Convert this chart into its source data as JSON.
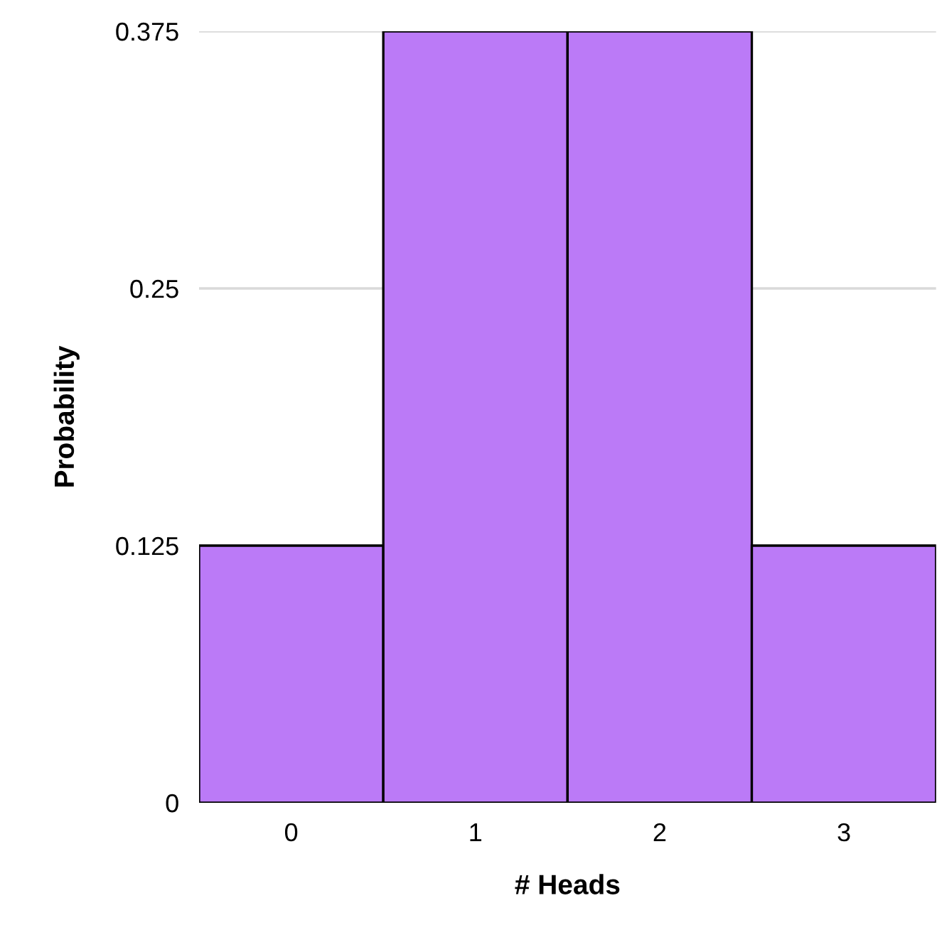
{
  "chart_data": {
    "type": "bar",
    "xlabel": "# Heads",
    "ylabel": "Probability",
    "categories": [
      "0",
      "1",
      "2",
      "3"
    ],
    "values": [
      0.125,
      0.375,
      0.375,
      0.125
    ],
    "color": "#bb7af7",
    "ylim": [
      0,
      0.375
    ],
    "yticks": [
      0,
      0.125,
      0.25,
      0.375
    ],
    "grid": "y"
  }
}
